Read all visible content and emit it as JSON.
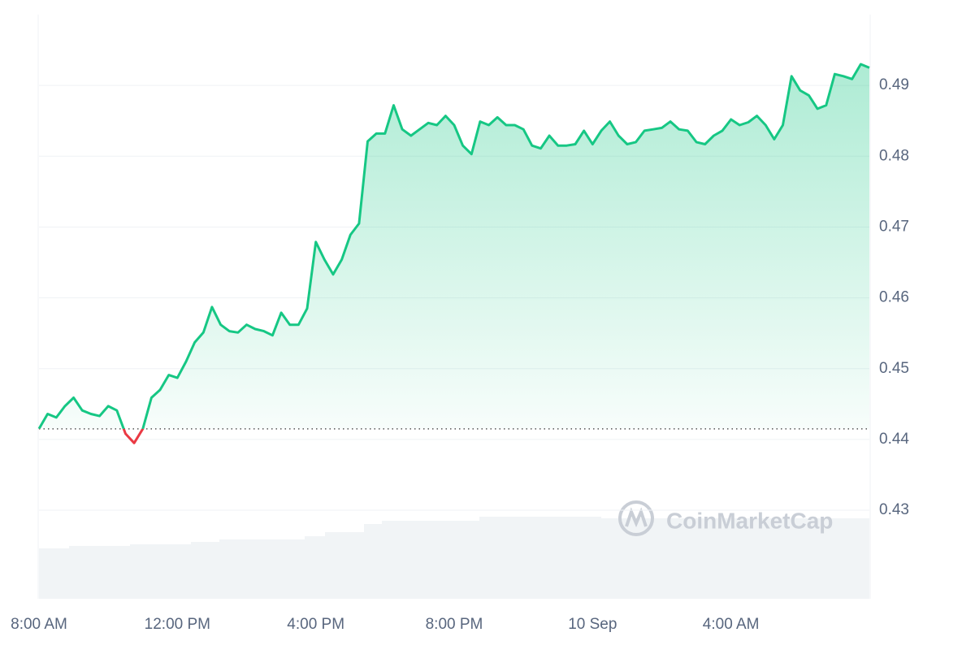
{
  "chart_data": {
    "type": "line",
    "watermark": "CoinMarketCap",
    "categories": [
      "8:00 AM",
      null,
      null,
      null,
      null,
      null,
      null,
      null,
      null,
      null,
      null,
      null,
      null,
      null,
      null,
      null,
      "12:00 PM",
      null,
      null,
      null,
      null,
      null,
      null,
      null,
      null,
      null,
      null,
      null,
      null,
      null,
      null,
      null,
      "4:00 PM",
      null,
      null,
      null,
      null,
      null,
      null,
      null,
      null,
      null,
      null,
      null,
      null,
      null,
      null,
      null,
      "8:00 PM",
      null,
      null,
      null,
      null,
      null,
      null,
      null,
      null,
      null,
      null,
      null,
      null,
      null,
      null,
      null,
      "10 Sep",
      null,
      null,
      null,
      null,
      null,
      null,
      null,
      null,
      null,
      null,
      null,
      null,
      null,
      null,
      null,
      "4:00 AM",
      null,
      null,
      null,
      null,
      null,
      null,
      null,
      null,
      null,
      null,
      null,
      null,
      null,
      null,
      null,
      null
    ],
    "values": [
      0.4415,
      0.4436,
      0.4431,
      0.4447,
      0.4459,
      0.4441,
      0.4436,
      0.4433,
      0.4447,
      0.4441,
      0.4408,
      0.4395,
      0.4415,
      0.4459,
      0.447,
      0.4491,
      0.4487,
      0.451,
      0.4537,
      0.4551,
      0.4587,
      0.4562,
      0.4553,
      0.4551,
      0.4562,
      0.4556,
      0.4553,
      0.4547,
      0.4579,
      0.4562,
      0.4562,
      0.4585,
      0.4679,
      0.4654,
      0.4633,
      0.4654,
      0.4689,
      0.4705,
      0.4821,
      0.4832,
      0.4832,
      0.4872,
      0.4838,
      0.4829,
      0.4838,
      0.4847,
      0.4844,
      0.4857,
      0.4844,
      0.4815,
      0.4803,
      0.4849,
      0.4844,
      0.4855,
      0.4844,
      0.4844,
      0.4838,
      0.4815,
      0.4811,
      0.4829,
      0.4815,
      0.4815,
      0.4817,
      0.4836,
      0.4817,
      0.4836,
      0.4849,
      0.4829,
      0.4817,
      0.482,
      0.4836,
      0.4838,
      0.484,
      0.4849,
      0.4838,
      0.4836,
      0.482,
      0.4817,
      0.4829,
      0.4836,
      0.4852,
      0.4844,
      0.4848,
      0.4857,
      0.4844,
      0.4824,
      0.4844,
      0.4913,
      0.4893,
      0.4886,
      0.4867,
      0.4872,
      0.4916,
      0.4913,
      0.4909,
      0.493,
      0.4925
    ],
    "baseline": 0.4415,
    "color": "#16c784",
    "down_color": "#ea3943",
    "ylim": [
      0.4175,
      0.5
    ],
    "yticks": [
      0.43,
      0.44,
      0.45,
      0.46,
      0.47,
      0.48,
      0.49
    ],
    "grid": true
  }
}
